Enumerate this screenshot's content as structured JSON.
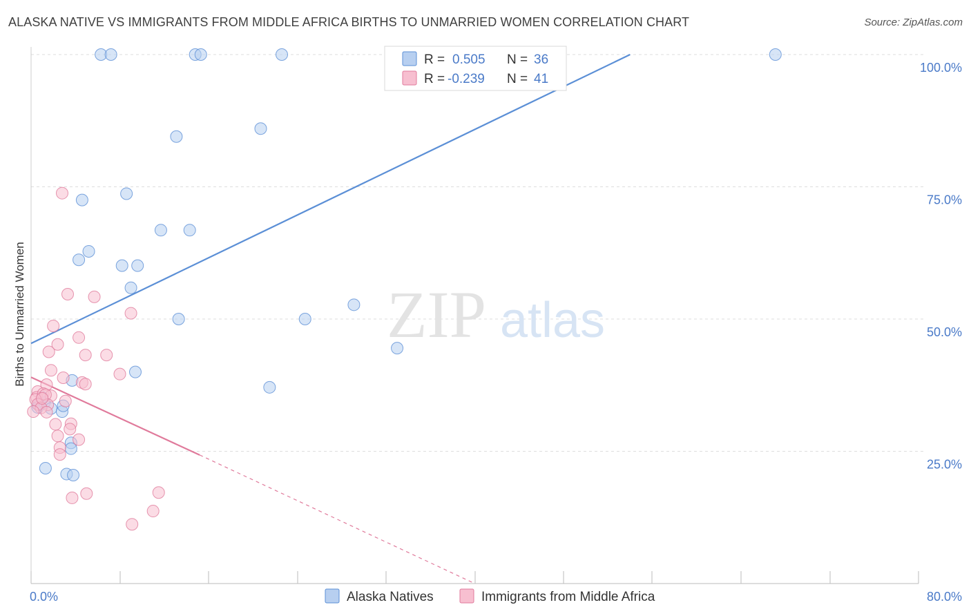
{
  "title": "ALASKA NATIVE VS IMMIGRANTS FROM MIDDLE AFRICA BIRTHS TO UNMARRIED WOMEN CORRELATION CHART",
  "source": "Source: ZipAtlas.com",
  "watermark": {
    "zip": "ZIP",
    "atlas": "atlas"
  },
  "colors": {
    "blue": "#5b8fd6",
    "blue_fill": "#b7cff0",
    "pink": "#e07a9b",
    "pink_fill": "#f7bfd0",
    "axis_label": "#4a7ac8",
    "grid": "#dddddd"
  },
  "legend": {
    "rows": [
      {
        "r_label": "R =",
        "r_value": "0.505",
        "n_label": "N =",
        "n_value": "36"
      },
      {
        "r_label": "R =",
        "r_value": "-0.239",
        "n_label": "N =",
        "n_value": "41"
      }
    ]
  },
  "chart_data": {
    "type": "scatter",
    "xlabel": "",
    "ylabel": "Births to Unmarried Women",
    "xlim": [
      0,
      80
    ],
    "ylim": [
      0,
      100
    ],
    "x_tick_labels": [
      {
        "value": 0,
        "label": "0.0%"
      },
      {
        "value": 80,
        "label": "80.0%"
      }
    ],
    "y_tick_labels": [
      {
        "value": 25,
        "label": "25.0%"
      },
      {
        "value": 50,
        "label": "50.0%"
      },
      {
        "value": 75,
        "label": "75.0%"
      },
      {
        "value": 100,
        "label": "100.0%"
      }
    ],
    "grid": true,
    "legend_position": "top-center",
    "series": [
      {
        "name": "Alaska Natives",
        "color": "#5b8fd6",
        "points": [
          [
            6.3,
            100
          ],
          [
            7.2,
            100
          ],
          [
            14.8,
            100
          ],
          [
            15.3,
            100
          ],
          [
            22.6,
            100
          ],
          [
            67.1,
            100
          ],
          [
            20.7,
            86
          ],
          [
            13.1,
            84.5
          ],
          [
            8.6,
            73.7
          ],
          [
            4.6,
            72.5
          ],
          [
            14.3,
            66.8
          ],
          [
            11.7,
            66.8
          ],
          [
            5.2,
            62.8
          ],
          [
            4.3,
            61.2
          ],
          [
            8.2,
            60.1
          ],
          [
            9.6,
            60.1
          ],
          [
            9.0,
            55.9
          ],
          [
            13.3,
            50
          ],
          [
            24.7,
            50
          ],
          [
            29.1,
            52.7
          ],
          [
            33.0,
            44.5
          ],
          [
            9.4,
            40
          ],
          [
            21.5,
            37.1
          ],
          [
            3.7,
            38.4
          ],
          [
            0.7,
            33.8
          ],
          [
            1.2,
            34.2
          ],
          [
            1.8,
            33.1
          ],
          [
            2.8,
            32.5
          ],
          [
            2.9,
            33.6
          ],
          [
            3.6,
            26.6
          ],
          [
            3.6,
            25.5
          ],
          [
            1.3,
            21.8
          ],
          [
            3.2,
            20.7
          ],
          [
            3.8,
            20.5
          ],
          [
            1.0,
            35.2
          ],
          [
            0.6,
            33.3
          ]
        ]
      },
      {
        "name": "Immigrants from Middle Africa",
        "color": "#e07a9b",
        "points": [
          [
            2.8,
            73.8
          ],
          [
            3.3,
            54.7
          ],
          [
            5.7,
            54.2
          ],
          [
            9.0,
            51.1
          ],
          [
            2.0,
            48.7
          ],
          [
            4.3,
            46.5
          ],
          [
            2.4,
            45.2
          ],
          [
            1.6,
            43.8
          ],
          [
            4.9,
            43.2
          ],
          [
            6.8,
            43.2
          ],
          [
            1.8,
            40.3
          ],
          [
            8.0,
            39.6
          ],
          [
            2.9,
            38.9
          ],
          [
            4.6,
            38
          ],
          [
            4.9,
            37.7
          ],
          [
            1.4,
            37.6
          ],
          [
            0.6,
            36.3
          ],
          [
            0.5,
            35.2
          ],
          [
            1.1,
            35.9
          ],
          [
            1.8,
            35.5
          ],
          [
            1.3,
            35.7
          ],
          [
            0.4,
            34.8
          ],
          [
            3.1,
            34.5
          ],
          [
            0.6,
            33.9
          ],
          [
            1.5,
            33.8
          ],
          [
            0.9,
            33.2
          ],
          [
            1.4,
            32.4
          ],
          [
            0.2,
            32.5
          ],
          [
            3.6,
            30.2
          ],
          [
            2.2,
            30.1
          ],
          [
            3.5,
            29.2
          ],
          [
            2.4,
            27.9
          ],
          [
            4.3,
            27.2
          ],
          [
            2.6,
            25.7
          ],
          [
            2.6,
            24.4
          ],
          [
            5.0,
            17
          ],
          [
            11.5,
            17.2
          ],
          [
            3.7,
            16.2
          ],
          [
            11.0,
            13.7
          ],
          [
            9.1,
            11.2
          ],
          [
            1.0,
            35.0
          ]
        ]
      }
    ],
    "trendlines": [
      {
        "series": "Alaska Natives",
        "from": [
          0,
          45.4
        ],
        "to": [
          54,
          100
        ],
        "dashed_to": null
      },
      {
        "series": "Immigrants from Middle Africa",
        "from": [
          0,
          39
        ],
        "to": [
          15.2,
          24.3
        ],
        "dashed_to": [
          40,
          0
        ]
      }
    ]
  }
}
